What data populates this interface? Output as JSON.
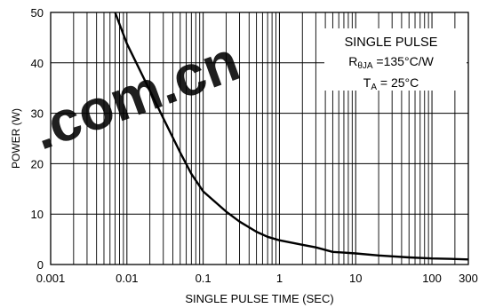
{
  "chart_data": {
    "type": "line",
    "xlabel": "SINGLE PULSE TIME (SEC)",
    "ylabel": "POWER (W)",
    "x_scale": "log",
    "xlim": [
      0.001,
      300
    ],
    "ylim": [
      0,
      50
    ],
    "x_ticks": [
      {
        "value": 0.001,
        "label": "0.001"
      },
      {
        "value": 0.01,
        "label": "0.01"
      },
      {
        "value": 0.1,
        "label": "0.1"
      },
      {
        "value": 1,
        "label": "1"
      },
      {
        "value": 10,
        "label": "10"
      },
      {
        "value": 100,
        "label": "100"
      },
      {
        "value": 300,
        "label": "300"
      }
    ],
    "y_ticks": [
      0,
      10,
      20,
      30,
      40,
      50
    ],
    "grid": true,
    "annotation": {
      "line1": "SINGLE PULSE",
      "line2_prefix": "R",
      "line2_sub": "θJA",
      "line2_suffix": " =135°C/W",
      "line3_prefix": "T",
      "line3_sub": "A",
      "line3_suffix": " = 25°C"
    },
    "series": [
      {
        "color": "#000000",
        "x": [
          0.007,
          0.01,
          0.02,
          0.03,
          0.05,
          0.07,
          0.1,
          0.2,
          0.3,
          0.5,
          0.7,
          1,
          2,
          3,
          5,
          10,
          20,
          50,
          100,
          200,
          300
        ],
        "y": [
          50,
          43.8,
          34.5,
          29.0,
          22.2,
          18.0,
          14.5,
          10.5,
          8.5,
          6.5,
          5.5,
          4.8,
          3.9,
          3.4,
          2.5,
          2.2,
          1.8,
          1.4,
          1.2,
          1.1,
          1.0
        ]
      }
    ],
    "watermark": ".com.cn"
  }
}
